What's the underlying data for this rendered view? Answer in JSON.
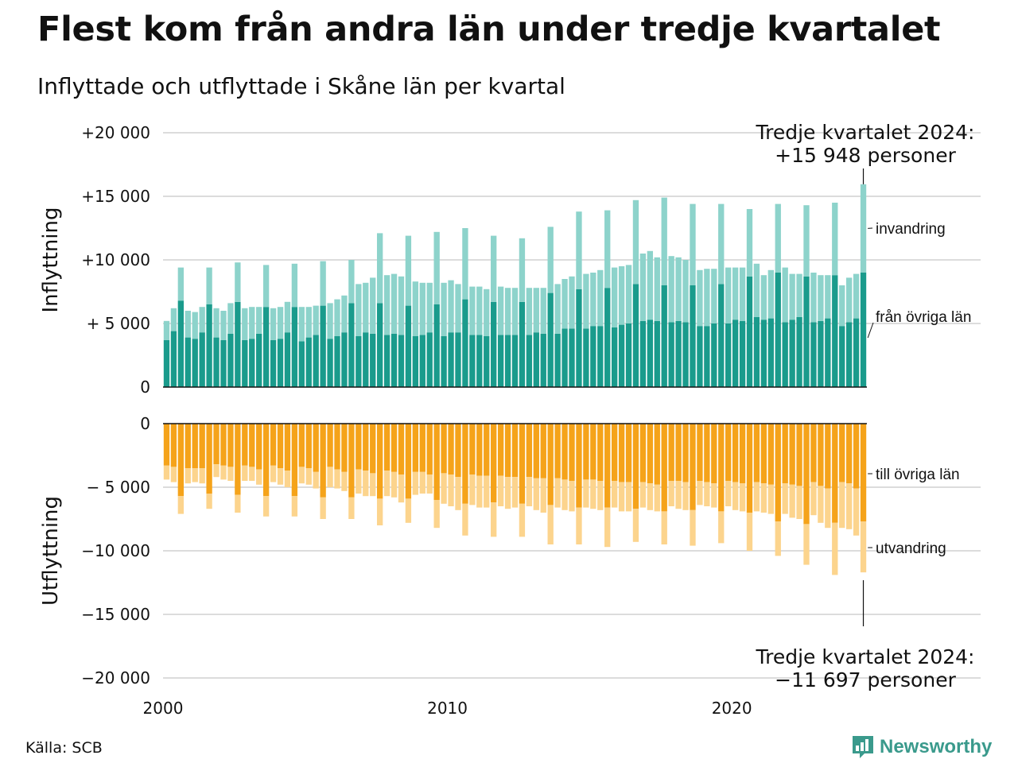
{
  "title": "Flest kom från andra län under tredje kvartalet",
  "subtitle": "Inflyttade och utflyttade i Skåne län per kvartal",
  "source": "Källa: SCB",
  "brand": "Newsworthy",
  "colors": {
    "inflow_domestic": "#1a9b8c",
    "inflow_immigration": "#8dd3cb",
    "outflow_domestic": "#f5a31a",
    "outflow_emigration": "#fcd48d",
    "brand": "#3a9a8c"
  },
  "chart_data": [
    {
      "type": "bar",
      "stacked": true,
      "ylabel": "Inflyttning",
      "ylim": [
        0,
        20000
      ],
      "yticks": [
        {
          "value": 0,
          "label": "0"
        },
        {
          "value": 5000,
          "label": "+ 5 000"
        },
        {
          "value": 10000,
          "label": "+10 000"
        },
        {
          "value": 15000,
          "label": "+15 000"
        },
        {
          "value": 20000,
          "label": "+20 000"
        }
      ],
      "x_start": "2000 Q1",
      "x_ticks": [
        "2000",
        "2010",
        "2020"
      ],
      "series": [
        {
          "name": "från övriga län",
          "values": [
            3700,
            4400,
            6800,
            3900,
            3800,
            4300,
            6500,
            3900,
            3700,
            4200,
            6700,
            3700,
            3800,
            4200,
            6300,
            3700,
            3800,
            4300,
            6300,
            3600,
            3900,
            4100,
            6400,
            3800,
            4000,
            4300,
            6600,
            4000,
            4300,
            4200,
            6600,
            4100,
            4200,
            4100,
            6400,
            4000,
            4100,
            4300,
            6500,
            4000,
            4300,
            4300,
            6900,
            4100,
            4100,
            4000,
            6700,
            4100,
            4100,
            4100,
            6700,
            4100,
            4300,
            4200,
            7400,
            4200,
            4600,
            4600,
            7700,
            4600,
            4800,
            4800,
            7800,
            4700,
            4900,
            5000,
            8100,
            5200,
            5300,
            5200,
            8000,
            5100,
            5200,
            5100,
            8000,
            4800,
            4800,
            5000,
            8100,
            5000,
            5300,
            5200,
            8700,
            5500,
            5300,
            5400,
            9000,
            5100,
            5300,
            5500,
            8700,
            5100,
            5200,
            5400,
            8800,
            4800,
            5100,
            5400,
            9000
          ]
        },
        {
          "name": "invandring",
          "values": [
            1500,
            1800,
            2600,
            2100,
            2100,
            2000,
            2900,
            2300,
            2300,
            2400,
            3100,
            2500,
            2500,
            2100,
            3300,
            2500,
            2500,
            2400,
            3400,
            2700,
            2400,
            2300,
            3500,
            2800,
            2900,
            2900,
            3400,
            4100,
            3900,
            4400,
            5500,
            4700,
            4700,
            4600,
            5500,
            4300,
            4100,
            3900,
            5700,
            4200,
            4100,
            3800,
            5600,
            3800,
            3800,
            3700,
            5200,
            3800,
            3700,
            3700,
            5000,
            3700,
            3500,
            3600,
            5200,
            3900,
            3900,
            4100,
            6100,
            4300,
            4200,
            4400,
            6100,
            4700,
            4600,
            4600,
            6600,
            5300,
            5400,
            5000,
            6900,
            5200,
            5000,
            4900,
            6400,
            4400,
            4500,
            4300,
            6300,
            4400,
            4100,
            4200,
            5300,
            4200,
            3500,
            3800,
            5400,
            4300,
            3600,
            3400,
            5600,
            3900,
            3600,
            3400,
            5700,
            3200,
            3500,
            3500,
            6948
          ]
        }
      ]
    },
    {
      "type": "bar",
      "stacked": true,
      "ylabel": "Utflyttning",
      "ylim": [
        -20000,
        0
      ],
      "yticks": [
        {
          "value": 0,
          "label": "0"
        },
        {
          "value": -5000,
          "label": "− 5 000"
        },
        {
          "value": -10000,
          "label": "−10 000"
        },
        {
          "value": -15000,
          "label": "−15 000"
        },
        {
          "value": -20000,
          "label": "−20 000"
        }
      ],
      "x_start": "2000 Q1",
      "x_ticks": [
        "2000",
        "2010",
        "2020"
      ],
      "series": [
        {
          "name": "till övriga län",
          "values": [
            -3300,
            -3400,
            -5700,
            -3500,
            -3500,
            -3500,
            -5500,
            -3200,
            -3300,
            -3400,
            -5600,
            -3300,
            -3400,
            -3600,
            -5700,
            -3300,
            -3500,
            -3700,
            -5700,
            -3400,
            -3500,
            -3800,
            -5800,
            -3400,
            -3600,
            -3800,
            -5800,
            -3600,
            -3700,
            -3900,
            -5900,
            -3700,
            -3800,
            -4000,
            -5900,
            -3800,
            -3800,
            -4000,
            -6000,
            -3900,
            -4000,
            -4200,
            -6300,
            -4000,
            -4100,
            -4100,
            -6200,
            -4100,
            -4200,
            -4200,
            -6300,
            -4200,
            -4300,
            -4300,
            -6400,
            -4300,
            -4400,
            -4500,
            -6600,
            -4400,
            -4400,
            -4500,
            -6600,
            -4500,
            -4600,
            -4600,
            -6700,
            -4600,
            -4700,
            -4800,
            -6900,
            -4500,
            -4500,
            -4600,
            -6800,
            -4500,
            -4600,
            -4700,
            -6900,
            -4500,
            -4600,
            -4700,
            -7000,
            -4600,
            -4700,
            -4800,
            -7700,
            -4700,
            -4800,
            -4900,
            -7900,
            -4600,
            -4900,
            -5100,
            -7800,
            -4600,
            -4700,
            -5100,
            -7700
          ]
        },
        {
          "name": "utvandring",
          "values": [
            -1100,
            -1200,
            -1400,
            -1200,
            -1100,
            -1200,
            -1200,
            -1000,
            -1100,
            -1100,
            -1400,
            -1200,
            -1100,
            -1200,
            -1600,
            -1300,
            -1300,
            -1300,
            -1600,
            -1300,
            -1300,
            -1300,
            -1700,
            -1600,
            -1500,
            -1500,
            -1700,
            -1900,
            -2000,
            -1800,
            -2100,
            -2000,
            -2000,
            -2200,
            -1900,
            -1800,
            -1700,
            -1500,
            -2200,
            -2400,
            -2500,
            -2600,
            -2500,
            -2400,
            -2500,
            -2500,
            -2700,
            -2400,
            -2500,
            -2400,
            -2600,
            -2300,
            -2500,
            -2700,
            -3100,
            -2300,
            -2400,
            -2400,
            -2900,
            -2200,
            -2300,
            -2300,
            -3100,
            -2100,
            -2300,
            -2300,
            -2600,
            -2000,
            -2100,
            -2100,
            -2600,
            -2000,
            -2200,
            -2200,
            -2800,
            -1900,
            -1900,
            -1900,
            -2500,
            -2000,
            -2200,
            -2200,
            -3000,
            -2300,
            -2300,
            -2300,
            -2700,
            -2400,
            -2600,
            -2600,
            -3200,
            -2600,
            -2900,
            -3100,
            -4100,
            -3600,
            -3600,
            -3700,
            -3997
          ]
        }
      ]
    }
  ],
  "annotations": {
    "top_line1": "Tredje kvartalet 2024:",
    "top_line2": "+15 948 personer",
    "bottom_line1": "Tredje kvartalet 2024:",
    "bottom_line2": "−11 697 personer"
  }
}
